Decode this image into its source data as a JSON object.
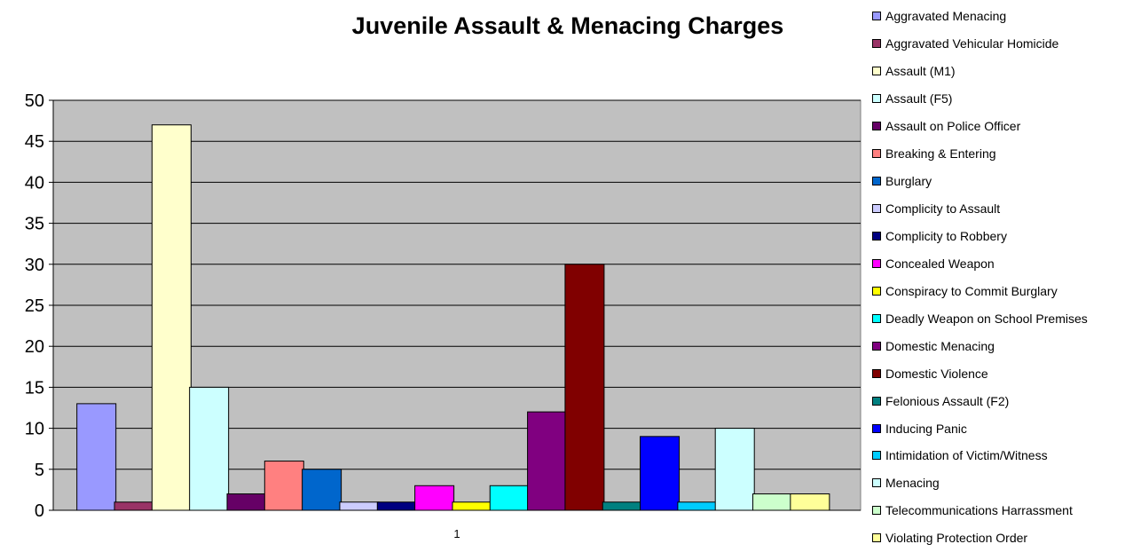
{
  "chart_data": {
    "type": "bar",
    "title": "Juvenile Assault & Menacing Charges",
    "xlabel": "",
    "ylabel": "",
    "categories": [
      "1"
    ],
    "ylim": [
      0,
      50
    ],
    "yticks": [
      0,
      5,
      10,
      15,
      20,
      25,
      30,
      35,
      40,
      45,
      50
    ],
    "grid": true,
    "legend_position": "right",
    "series": [
      {
        "name": "Aggravated Menacing",
        "values": [
          13
        ],
        "color": "#9999ff"
      },
      {
        "name": "Aggravated Vehicular Homicide",
        "values": [
          1
        ],
        "color": "#993366"
      },
      {
        "name": "Assault (M1)",
        "values": [
          47
        ],
        "color": "#ffffcc"
      },
      {
        "name": "Assault (F5)",
        "values": [
          15
        ],
        "color": "#ccffff"
      },
      {
        "name": "Assault on Police Officer",
        "values": [
          2
        ],
        "color": "#660066"
      },
      {
        "name": "Breaking & Entering",
        "values": [
          6
        ],
        "color": "#ff8080"
      },
      {
        "name": "Burglary",
        "values": [
          5
        ],
        "color": "#0066cc"
      },
      {
        "name": "Complicity to Assault",
        "values": [
          1
        ],
        "color": "#ccccff"
      },
      {
        "name": "Complicity to Robbery",
        "values": [
          1
        ],
        "color": "#000080"
      },
      {
        "name": "Concealed Weapon",
        "values": [
          3
        ],
        "color": "#ff00ff"
      },
      {
        "name": "Conspiracy to Commit Burglary",
        "values": [
          1
        ],
        "color": "#ffff00"
      },
      {
        "name": "Deadly Weapon on School Premises",
        "values": [
          3
        ],
        "color": "#00ffff"
      },
      {
        "name": "Domestic Menacing",
        "values": [
          12
        ],
        "color": "#800080"
      },
      {
        "name": "Domestic Violence",
        "values": [
          30
        ],
        "color": "#800000"
      },
      {
        "name": "Felonious Assault (F2)",
        "values": [
          1
        ],
        "color": "#008080"
      },
      {
        "name": "Inducing Panic",
        "values": [
          9
        ],
        "color": "#0000ff"
      },
      {
        "name": "Intimidation of Victim/Witness",
        "values": [
          1
        ],
        "color": "#00ccff"
      },
      {
        "name": "Menacing",
        "values": [
          10
        ],
        "color": "#ccffff"
      },
      {
        "name": "Telecommunications Harrassment",
        "values": [
          2
        ],
        "color": "#ccffcc"
      },
      {
        "name": "Violating Protection Order",
        "values": [
          2
        ],
        "color": "#ffff99"
      }
    ],
    "plot_background": "#c0c0c0"
  }
}
